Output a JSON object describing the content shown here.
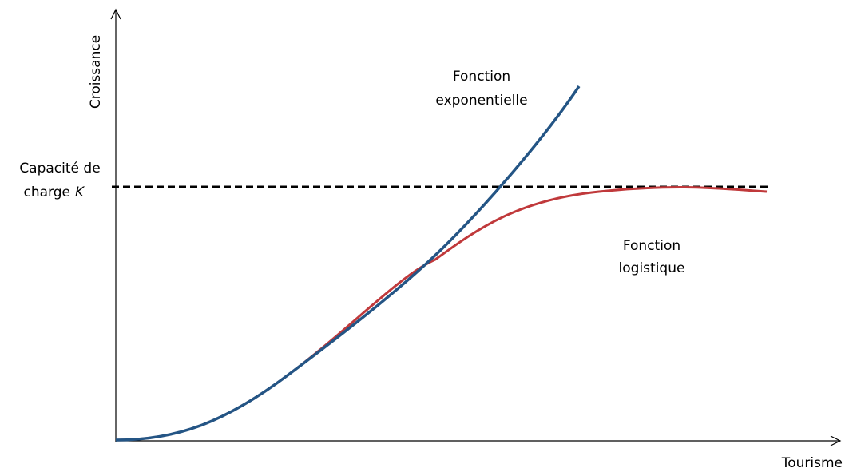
{
  "axes": {
    "y_label": "Croissance",
    "x_label": "Tourisme"
  },
  "capacity": {
    "line1": "Capacité de",
    "line2": "charge",
    "symbol": "K"
  },
  "exponential": {
    "lines": [
      "Fonction",
      "exponentielle"
    ]
  },
  "logistic": {
    "lines": [
      "Fonction",
      "logistique"
    ]
  }
}
